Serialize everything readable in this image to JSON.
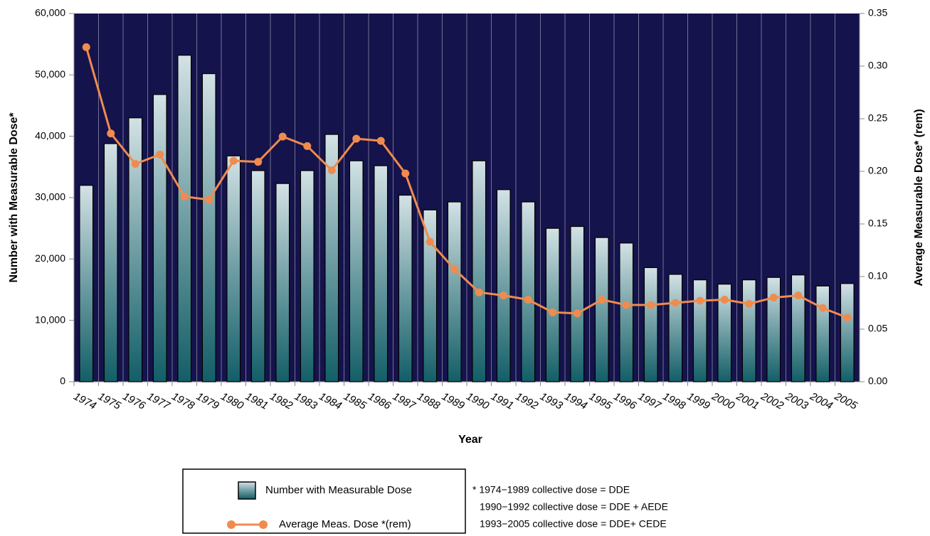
{
  "chart_data": {
    "type": "bar",
    "xlabel": "Year",
    "ylabel": "Number with Measurable Dose*",
    "y2label": "Average Measurable Dose* (rem)",
    "categories": [
      "1974",
      "1975",
      "1976",
      "1977",
      "1978",
      "1979",
      "1980",
      "1981",
      "1982",
      "1983",
      "1984",
      "1985",
      "1986",
      "1987",
      "1988",
      "1989",
      "1990",
      "1991",
      "1992",
      "1993",
      "1994",
      "1995",
      "1996",
      "1997",
      "1998",
      "1999",
      "2000",
      "2001",
      "2002",
      "2003",
      "2004",
      "2005"
    ],
    "series": [
      {
        "name": "Number with Measurable Dose",
        "type": "bar",
        "color": "#1d6b73",
        "values": [
          32000,
          38800,
          43000,
          46800,
          53200,
          50200,
          36800,
          34400,
          32300,
          34400,
          40300,
          36000,
          35200,
          30400,
          28000,
          29300,
          36000,
          31300,
          29300,
          25000,
          25300,
          23500,
          22600,
          18600,
          17500,
          16600,
          15900,
          16600,
          17000,
          17400,
          15600,
          16000
        ]
      },
      {
        "name": "Average Meas. Dose *(rem)",
        "type": "line",
        "axis": "y2",
        "color": "#f08b4f",
        "values": [
          0.318,
          0.236,
          0.207,
          0.216,
          0.176,
          0.173,
          0.21,
          0.209,
          0.233,
          0.224,
          0.201,
          0.231,
          0.229,
          0.198,
          0.133,
          0.107,
          0.085,
          0.082,
          0.078,
          0.066,
          0.065,
          0.078,
          0.073,
          0.073,
          0.075,
          0.077,
          0.078,
          0.074,
          0.08,
          0.082,
          0.07,
          0.061
        ]
      }
    ],
    "ylim": [
      0,
      60000
    ],
    "yticks": [
      0,
      {
        "value": 10000,
        "label": "10,000"
      },
      {
        "value": 20000,
        "label": "20,000"
      },
      {
        "value": 30000,
        "label": "30,000"
      },
      {
        "value": 40000,
        "label": "40,000"
      },
      {
        "value": 50000,
        "label": "50,000"
      },
      {
        "value": 60000,
        "label": "60,000"
      }
    ],
    "y2lim": [
      0,
      0.35
    ],
    "y2ticks": [
      {
        "value": 0,
        "label": "0.00"
      },
      {
        "value": 0.05,
        "label": "0.05"
      },
      {
        "value": 0.1,
        "label": "0.10"
      },
      {
        "value": 0.15,
        "label": "0.15"
      },
      {
        "value": 0.2,
        "label": "0.20"
      },
      {
        "value": 0.25,
        "label": "0.25"
      },
      {
        "value": 0.3,
        "label": "0.30"
      },
      {
        "value": 0.35,
        "label": "0.35"
      }
    ],
    "background": "#15134b",
    "notes": [
      "* 1974−1989 collective dose = DDE",
      "1990−1992 collective dose = DDE + AEDE",
      "1993−2005 collective dose = DDE+ CEDE"
    ]
  }
}
